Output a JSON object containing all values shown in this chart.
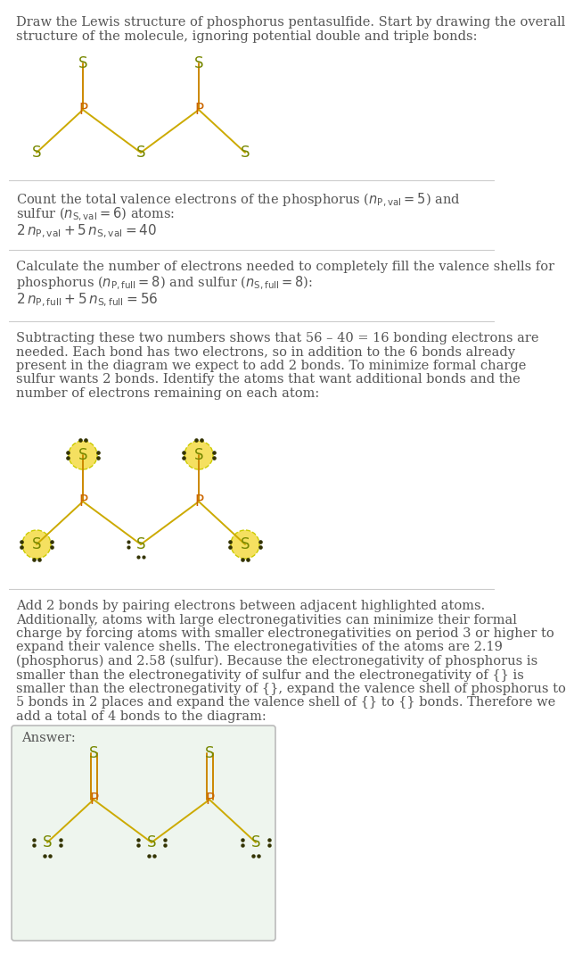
{
  "bg_color": "#ffffff",
  "text_color": "#555555",
  "P_color": "#cc6600",
  "S_color": "#778800",
  "bond_color": "#ccaa00",
  "bond_color_top": "#cc8800",
  "highlight_fill": "#f5e060",
  "highlight_edge": "#cccc00",
  "answer_box_fill": "#eef5ee",
  "answer_box_edge": "#bbbbbb",
  "sep_color": "#cccccc",
  "dot_color": "#333300",
  "sec1_title": "Draw the Lewis structure of phosphorus pentasulfide. Start by drawing the overall\nstructure of the molecule, ignoring potential double and triple bonds:",
  "sec2_line1": "Count the total valence electrons of the phosphorus ($n_{\\mathrm{P,val}} = 5$) and",
  "sec2_line2": "sulfur ($n_{\\mathrm{S,val}} = 6$) atoms:",
  "sec2_eq": "$2\\,n_{\\mathrm{P,val}} + 5\\,n_{\\mathrm{S,val}} = 40$",
  "sec3_line1": "Calculate the number of electrons needed to completely fill the valence shells for",
  "sec3_line2": "phosphorus ($n_{\\mathrm{P,full}} = 8$) and sulfur ($n_{\\mathrm{S,full}} = 8$):",
  "sec3_eq": "$2\\,n_{\\mathrm{P,full}} + 5\\,n_{\\mathrm{S,full}} = 56$",
  "sec4_lines": [
    "Subtracting these two numbers shows that 56 – 40 = 16 bonding electrons are",
    "needed. Each bond has two electrons, so in addition to the 6 bonds already",
    "present in the diagram we expect to add 2 bonds. To minimize formal charge",
    "sulfur wants 2 bonds. Identify the atoms that want additional bonds and the",
    "number of electrons remaining on each atom:"
  ],
  "sec5_lines": [
    "Add 2 bonds by pairing electrons between adjacent highlighted atoms.",
    "Additionally, atoms with large electronegativities can minimize their formal",
    "charge by forcing atoms with smaller electronegativities on period 3 or higher to",
    "expand their valence shells. The electronegativities of the atoms are 2.19",
    "(phosphorus) and 2.58 (sulfur). Because the electronegativity of phosphorus is",
    "smaller than the electronegativity of sulfur and the electronegativity of {} is",
    "smaller than the electronegativity of {}, expand the valence shell of phosphorus to",
    "5 bonds in 2 places and expand the valence shell of {} to {} bonds. Therefore we",
    "add a total of 4 bonds to the diagram:"
  ],
  "answer_label": "Answer:"
}
